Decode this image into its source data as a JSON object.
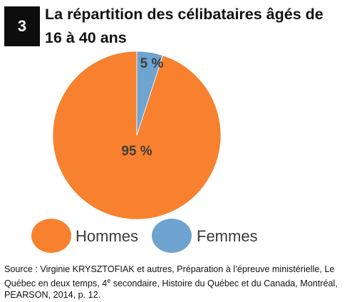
{
  "badge": "3",
  "title": "La répartition des célibataires âgés de 16 à 40 ans",
  "chart_data": {
    "type": "pie",
    "categories": [
      "Hommes",
      "Femmes"
    ],
    "values": [
      95,
      5
    ],
    "labels": [
      "95 %",
      "5 %"
    ],
    "colors": [
      "#f7812e",
      "#6ea4cf"
    ],
    "legend": "bottom"
  },
  "source": "Source : Virginie KRYSZTOFIAK et autres, Préparation à l’épreuve ministérielle, Le Québec en deux temps, 4e secondaire, Histoire du Québec et du Canada, Montréal, PEARSON, 2014, p. 12."
}
